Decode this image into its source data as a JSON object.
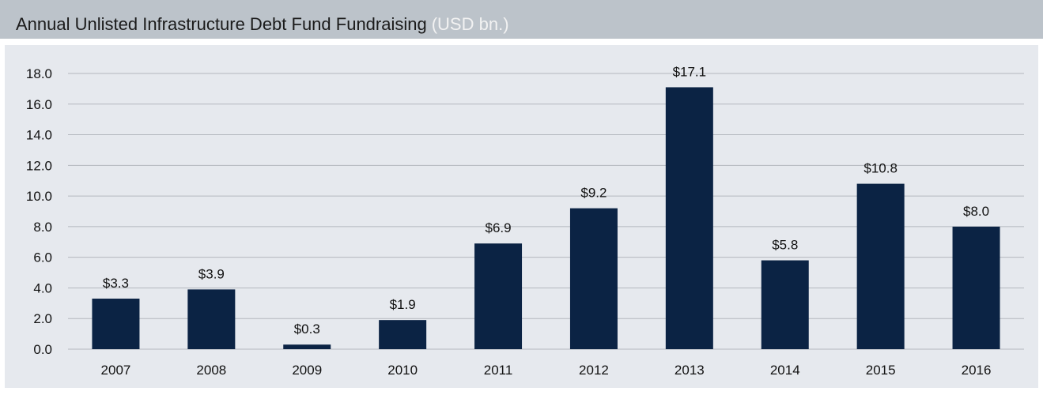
{
  "chart_data": {
    "type": "bar",
    "title": "Annual Unlisted Infrastructure Debt Fund Fundraising",
    "subtitle": "(USD bn.)",
    "categories": [
      "2007",
      "2008",
      "2009",
      "2010",
      "2011",
      "2012",
      "2013",
      "2014",
      "2015",
      "2016"
    ],
    "values": [
      3.3,
      3.9,
      0.3,
      1.9,
      6.9,
      9.2,
      17.1,
      5.8,
      10.8,
      8.0
    ],
    "value_labels": [
      "$3.3",
      "$3.9",
      "$0.3",
      "$1.9",
      "$6.9",
      "$9.2",
      "$17.1",
      "$5.8",
      "$10.8",
      "$8.0"
    ],
    "color": "#0b2344",
    "ylim": [
      0,
      18
    ],
    "yticks": [
      {
        "value": 0,
        "label": "0.0"
      },
      {
        "value": 2,
        "label": "2.0"
      },
      {
        "value": 4,
        "label": "4.0"
      },
      {
        "value": 6,
        "label": "6.0"
      },
      {
        "value": 8,
        "label": "8.0"
      },
      {
        "value": 10,
        "label": "10.0"
      },
      {
        "value": 12,
        "label": "12.0"
      },
      {
        "value": 14,
        "label": "14.0"
      },
      {
        "value": 16,
        "label": "16.0"
      },
      {
        "value": 18,
        "label": "18.0"
      }
    ],
    "grid": true
  }
}
